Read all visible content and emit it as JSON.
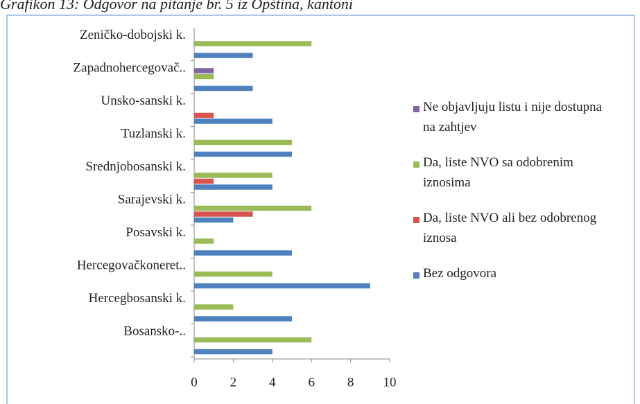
{
  "chart_data": {
    "type": "hbar",
    "title": "Grafikon 13: Odgovor na pitanje br. 5 iz Opština, kantoni",
    "categories": [
      "Zeničko-dobojski k.",
      "Zapadnohercegovač..",
      "Unsko-sanski k.",
      "Tuzlanski k.",
      "Srednjobosanski k.",
      "Sarajevski k.",
      "Posavski k.",
      "Hercegovačkoneret..",
      "Hercegbosanski k.",
      "Bosansko-.."
    ],
    "series": [
      {
        "name": "Ne objavljuju listu i nije dostupna na zahtjev",
        "color": "#8064a2",
        "values": [
          0,
          1,
          0,
          0,
          0,
          0,
          0,
          0,
          0,
          0
        ]
      },
      {
        "name": "Da, liste NVO sa odobrenim iznosima",
        "color": "#9bbb59",
        "values": [
          6,
          1,
          0,
          5,
          4,
          6,
          1,
          4,
          2,
          6
        ]
      },
      {
        "name": "Da, liste NVO ali bez odobrenog iznosa",
        "color": "#d9534f",
        "values": [
          0,
          0,
          1,
          0,
          1,
          3,
          0,
          0,
          0,
          0
        ]
      },
      {
        "name": "Bez odgovora",
        "color": "#4f81bd",
        "values": [
          3,
          3,
          4,
          5,
          4,
          2,
          5,
          9,
          5,
          4
        ]
      }
    ],
    "xlim": [
      0,
      10
    ],
    "xticks": [
      0,
      2,
      4,
      6,
      8,
      10
    ],
    "grid": false
  }
}
